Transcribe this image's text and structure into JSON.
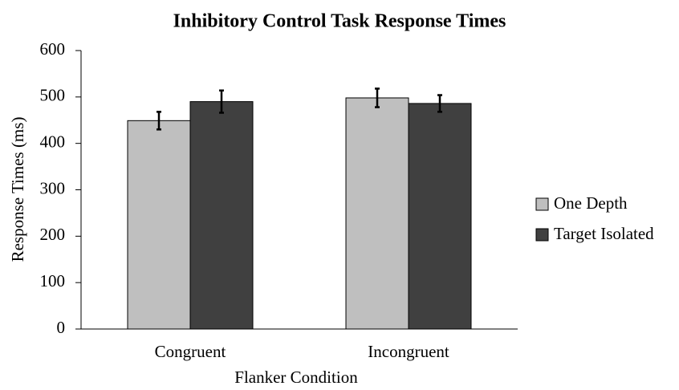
{
  "chart_data": {
    "type": "bar",
    "title": "Inhibitory Control Task Response Times",
    "x_label": "Flanker Condition",
    "y_label": "Response Times (ms)",
    "categories": [
      "Congruent",
      "Incongruent"
    ],
    "series": [
      {
        "name": "One Depth",
        "color": "#bfbfbf",
        "values": [
          449,
          498
        ],
        "errors": [
          19,
          20
        ]
      },
      {
        "name": "Target Isolated",
        "color": "#404040",
        "values": [
          490,
          486
        ],
        "errors": [
          24,
          18
        ]
      }
    ],
    "ylim": [
      0,
      600
    ],
    "yticks": [
      0,
      100,
      200,
      300,
      400,
      500,
      600
    ],
    "grid": false,
    "legend": "right"
  }
}
